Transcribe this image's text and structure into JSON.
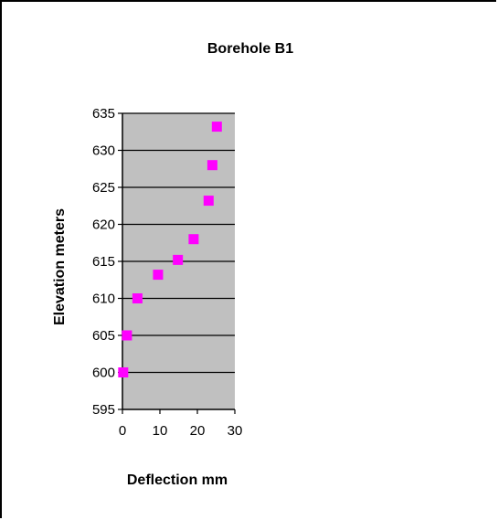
{
  "chart_data": {
    "type": "scatter",
    "title": "Borehole B1",
    "xlabel": "Deflection mm",
    "ylabel": "Elevation meters",
    "xlim": [
      0,
      30
    ],
    "ylim": [
      595,
      635
    ],
    "xticks": [
      0,
      10,
      20,
      30
    ],
    "yticks": [
      595,
      600,
      605,
      610,
      615,
      620,
      625,
      630,
      635
    ],
    "grid": "horizontal",
    "legend": "none",
    "plot_background": "#c0c0c0",
    "marker": "square",
    "series": [
      {
        "color": "#ff00ff",
        "points": [
          {
            "x": 0.2,
            "y": 600
          },
          {
            "x": 1.2,
            "y": 605
          },
          {
            "x": 4.0,
            "y": 610
          },
          {
            "x": 9.5,
            "y": 613.2
          },
          {
            "x": 14.8,
            "y": 615.2
          },
          {
            "x": 19.0,
            "y": 618
          },
          {
            "x": 23.0,
            "y": 623.2
          },
          {
            "x": 24.0,
            "y": 628
          },
          {
            "x": 25.2,
            "y": 633.2
          }
        ]
      }
    ]
  }
}
